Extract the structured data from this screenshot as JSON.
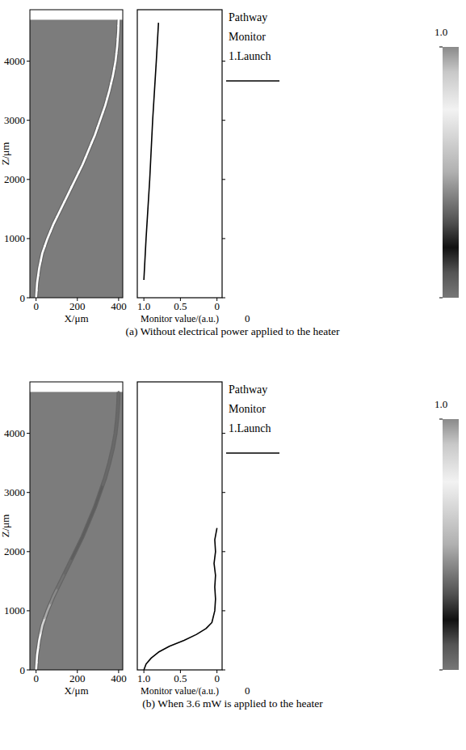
{
  "chart_data": [
    {
      "type": "line",
      "title": "(a) Without electrical power applied to the heater",
      "field": {
        "x_label": "X/μm",
        "y_label": "Z/μm",
        "xlim": [
          -30,
          420
        ],
        "ylim": [
          0,
          4870
        ],
        "xticks": [
          0,
          200,
          400
        ],
        "yticks": [
          0,
          1000,
          2000,
          3000,
          4000
        ],
        "z": [
          0,
          250,
          500,
          750,
          1000,
          1250,
          1500,
          1750,
          2000,
          2250,
          2500,
          2750,
          3000,
          3250,
          3500,
          3750,
          4000,
          4250,
          4500,
          4700
        ],
        "x": [
          0,
          5,
          15,
          30,
          55,
          85,
          120,
          155,
          190,
          225,
          255,
          285,
          310,
          335,
          355,
          372,
          385,
          393,
          398,
          400
        ],
        "intensity": [
          1,
          1,
          1,
          1,
          1,
          1,
          1,
          1,
          1,
          1,
          1,
          1,
          1,
          1,
          1,
          1,
          1,
          1,
          1,
          1
        ]
      },
      "monitor": {
        "x_label": "Monitor value/(a.u.)",
        "xlim": [
          1.09,
          -0.07
        ],
        "xticks": [
          {
            "value": 1,
            "label": "1.0"
          },
          0.5,
          0
        ],
        "z": [
          300,
          1000,
          2000,
          3000,
          4000,
          4650
        ],
        "values": [
          1.0,
          0.97,
          0.92,
          0.88,
          0.83,
          0.8
        ]
      },
      "legend_items": [
        "Pathway",
        "Monitor",
        "1.Launch"
      ],
      "colorbar": {
        "range": [
          0,
          1
        ],
        "ticks": [
          {
            "value": 1,
            "label": "1.0"
          },
          0
        ]
      }
    },
    {
      "type": "line",
      "title": "(b) When 3.6 mW is applied to the heater",
      "field": {
        "x_label": "X/μm",
        "y_label": "Z/μm",
        "xlim": [
          -30,
          420
        ],
        "ylim": [
          0,
          4870
        ],
        "xticks": [
          0,
          200,
          400
        ],
        "yticks": [
          0,
          1000,
          2000,
          3000,
          4000
        ],
        "z": [
          0,
          250,
          500,
          750,
          1000,
          1250,
          1500,
          1750,
          2000,
          2250,
          2500,
          2750,
          3000,
          3250,
          3500,
          3750,
          4000,
          4250,
          4500,
          4700
        ],
        "x": [
          0,
          5,
          15,
          30,
          55,
          85,
          120,
          155,
          190,
          225,
          255,
          285,
          310,
          335,
          355,
          372,
          385,
          393,
          398,
          400
        ],
        "intensity": [
          1,
          1,
          0.95,
          0.8,
          0.6,
          0.45,
          0.35,
          0.3,
          0.25,
          0.25,
          0.25,
          0.25,
          0.25,
          0.3,
          0.3,
          0.3,
          0.3,
          0.3,
          0.3,
          0.3
        ]
      },
      "monitor": {
        "x_label": "Monitor value/(a.u.)",
        "xlim": [
          1.09,
          -0.07
        ],
        "xticks": [
          {
            "value": 1,
            "label": "1.0"
          },
          0.5,
          0
        ],
        "z": [
          0,
          100,
          200,
          300,
          400,
          500,
          600,
          700,
          800,
          1000,
          1200,
          1400,
          1600,
          1800,
          2000,
          2200,
          2400
        ],
        "values": [
          1.0,
          0.97,
          0.9,
          0.8,
          0.65,
          0.45,
          0.28,
          0.15,
          0.07,
          0.03,
          0.02,
          0.03,
          0.02,
          0.04,
          0.02,
          0.03,
          0.0
        ]
      },
      "legend_items": [
        "Pathway",
        "Monitor",
        "1.Launch"
      ],
      "colorbar": {
        "range": [
          0,
          1
        ],
        "ticks": [
          {
            "value": 1,
            "label": "1.0"
          },
          0
        ]
      }
    }
  ]
}
